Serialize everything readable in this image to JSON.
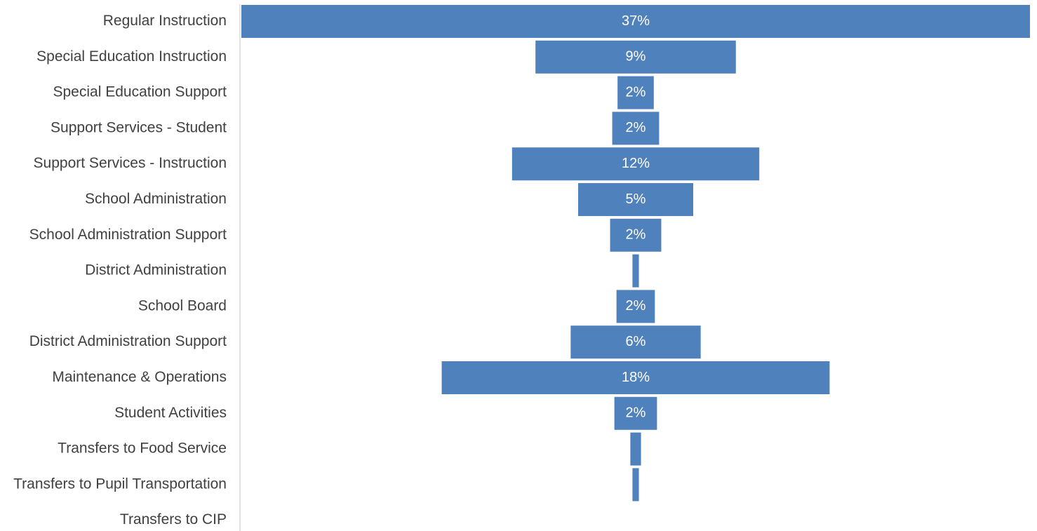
{
  "chart_data": {
    "type": "bar",
    "orientation": "horizontal",
    "style": "funnel",
    "categories": [
      "Regular Instruction",
      "Special Education Instruction",
      "Special Education Support",
      "Support Services - Student",
      "Support Services - Instruction",
      "School Administration",
      "School Administration Support",
      "District Administration",
      "School Board",
      "District Administration Support",
      "Maintenance & Operations",
      "Student Activities",
      "Transfers to Food Service",
      "Transfers to Pupil Transportation",
      "Transfers to CIP"
    ],
    "values": [
      37,
      9.4,
      1.7,
      2.2,
      11.6,
      5.4,
      2.4,
      0.3,
      1.8,
      6.1,
      18.2,
      2.0,
      0.5,
      0.3,
      0.0
    ],
    "data_labels": [
      "37%",
      "9%",
      "2%",
      "2%",
      "12%",
      "5%",
      "2%",
      "",
      "2%",
      "6%",
      "18%",
      "2%",
      "",
      "",
      ""
    ],
    "grid": false,
    "legend": "none"
  },
  "colors": {
    "bar": "#4f81bd",
    "axis": "#d9d9d9",
    "label_text": "#404040",
    "bar_text": "#ffffff"
  }
}
